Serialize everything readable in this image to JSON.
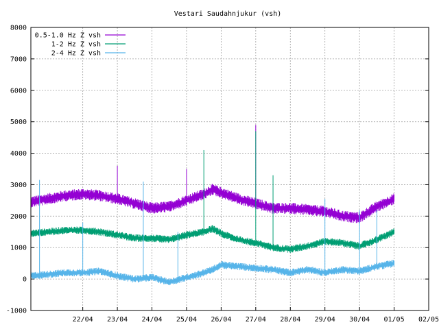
{
  "chart_data": {
    "type": "line",
    "title": "Vestari Saudahnjukur (vsh)",
    "xlabel": "",
    "ylabel": "",
    "ylim": [
      -1000,
      8000
    ],
    "yticks": [
      -1000,
      0,
      1000,
      2000,
      3000,
      4000,
      5000,
      6000,
      7000,
      8000
    ],
    "xlim": [
      "2025-04-21 00:00",
      "2025-05-02 12:00"
    ],
    "xticks": [
      {
        "label": "22/04",
        "x": "2025-04-22 12:00"
      },
      {
        "label": "23/04",
        "x": "2025-04-23 12:00"
      },
      {
        "label": "24/04",
        "x": "2025-04-24 12:00"
      },
      {
        "label": "25/04",
        "x": "2025-04-25 12:00"
      },
      {
        "label": "26/04",
        "x": "2025-04-26 12:00"
      },
      {
        "label": "27/04",
        "x": "2025-04-27 12:00"
      },
      {
        "label": "28/04",
        "x": "2025-04-28 12:00"
      },
      {
        "label": "29/04",
        "x": "2025-04-29 12:00"
      },
      {
        "label": "30/04",
        "x": "2025-04-30 12:00"
      },
      {
        "label": "01/05",
        "x": "2025-05-01 12:00"
      },
      {
        "label": "02/05",
        "x": "2025-05-02 12:00"
      }
    ],
    "grid": true,
    "legend_position": "top-left",
    "series": [
      {
        "name": "0.5-1.0 Hz Z vsh",
        "color": "#9400d3",
        "noise": 150,
        "x": [
          "2025-04-21 00:00",
          "2025-04-21 12:00",
          "2025-04-22 00:00",
          "2025-04-22 12:00",
          "2025-04-23 00:00",
          "2025-04-23 12:00",
          "2025-04-24 00:00",
          "2025-04-24 12:00",
          "2025-04-25 00:00",
          "2025-04-25 12:00",
          "2025-04-26 00:00",
          "2025-04-26 06:00",
          "2025-04-26 12:00",
          "2025-04-27 00:00",
          "2025-04-27 12:00",
          "2025-04-28 00:00",
          "2025-04-28 12:00",
          "2025-04-29 00:00",
          "2025-04-29 12:00",
          "2025-04-30 00:00",
          "2025-04-30 12:00",
          "2025-05-01 00:00",
          "2025-05-01 12:00"
        ],
        "y": [
          2450,
          2550,
          2650,
          2700,
          2650,
          2550,
          2400,
          2250,
          2300,
          2500,
          2700,
          2850,
          2750,
          2550,
          2400,
          2250,
          2250,
          2200,
          2150,
          2000,
          1950,
          2300,
          2550
        ],
        "spikes": [
          [
            "2025-04-23 12:00",
            3600
          ],
          [
            "2025-04-25 12:00",
            3500
          ],
          [
            "2025-04-27 12:00",
            4900
          ]
        ]
      },
      {
        "name": "1-2 Hz Z vsh",
        "color": "#009e73",
        "noise": 100,
        "x": [
          "2025-04-21 00:00",
          "2025-04-21 12:00",
          "2025-04-22 00:00",
          "2025-04-22 12:00",
          "2025-04-23 00:00",
          "2025-04-23 12:00",
          "2025-04-24 00:00",
          "2025-04-24 12:00",
          "2025-04-25 00:00",
          "2025-04-25 12:00",
          "2025-04-26 00:00",
          "2025-04-26 06:00",
          "2025-04-26 12:00",
          "2025-04-27 00:00",
          "2025-04-27 12:00",
          "2025-04-28 00:00",
          "2025-04-28 12:00",
          "2025-04-29 00:00",
          "2025-04-29 12:00",
          "2025-04-30 00:00",
          "2025-04-30 12:00",
          "2025-05-01 00:00",
          "2025-05-01 12:00"
        ],
        "y": [
          1450,
          1500,
          1550,
          1550,
          1500,
          1400,
          1300,
          1300,
          1250,
          1400,
          1500,
          1600,
          1450,
          1250,
          1150,
          1000,
          950,
          1050,
          1200,
          1150,
          1050,
          1250,
          1500
        ],
        "spikes": [
          [
            "2025-04-26 00:00",
            4100
          ],
          [
            "2025-04-27 12:00",
            4700
          ],
          [
            "2025-04-28 00:00",
            3300
          ]
        ]
      },
      {
        "name": "2-4 Hz Z vsh",
        "color": "#56b4e9",
        "noise": 100,
        "x": [
          "2025-04-21 00:00",
          "2025-04-21 12:00",
          "2025-04-22 00:00",
          "2025-04-22 12:00",
          "2025-04-23 00:00",
          "2025-04-23 12:00",
          "2025-04-24 00:00",
          "2025-04-24 12:00",
          "2025-04-25 00:00",
          "2025-04-25 12:00",
          "2025-04-26 00:00",
          "2025-04-26 06:00",
          "2025-04-26 12:00",
          "2025-04-27 00:00",
          "2025-04-27 12:00",
          "2025-04-28 00:00",
          "2025-04-28 12:00",
          "2025-04-29 00:00",
          "2025-04-29 12:00",
          "2025-04-30 00:00",
          "2025-04-30 12:00",
          "2025-05-01 00:00",
          "2025-05-01 12:00"
        ],
        "y": [
          100,
          150,
          200,
          200,
          250,
          100,
          0,
          50,
          -100,
          50,
          200,
          300,
          450,
          400,
          350,
          300,
          200,
          300,
          200,
          300,
          250,
          400,
          500
        ],
        "spikes": [
          [
            "2025-04-21 06:00",
            3150
          ],
          [
            "2025-04-22 12:00",
            1800
          ],
          [
            "2025-04-24 06:00",
            3100
          ],
          [
            "2025-04-25 06:00",
            1500
          ],
          [
            "2025-04-29 12:00",
            2550
          ],
          [
            "2025-04-30 12:00",
            2200
          ],
          [
            "2025-05-01 00:00",
            2200
          ]
        ]
      }
    ]
  }
}
